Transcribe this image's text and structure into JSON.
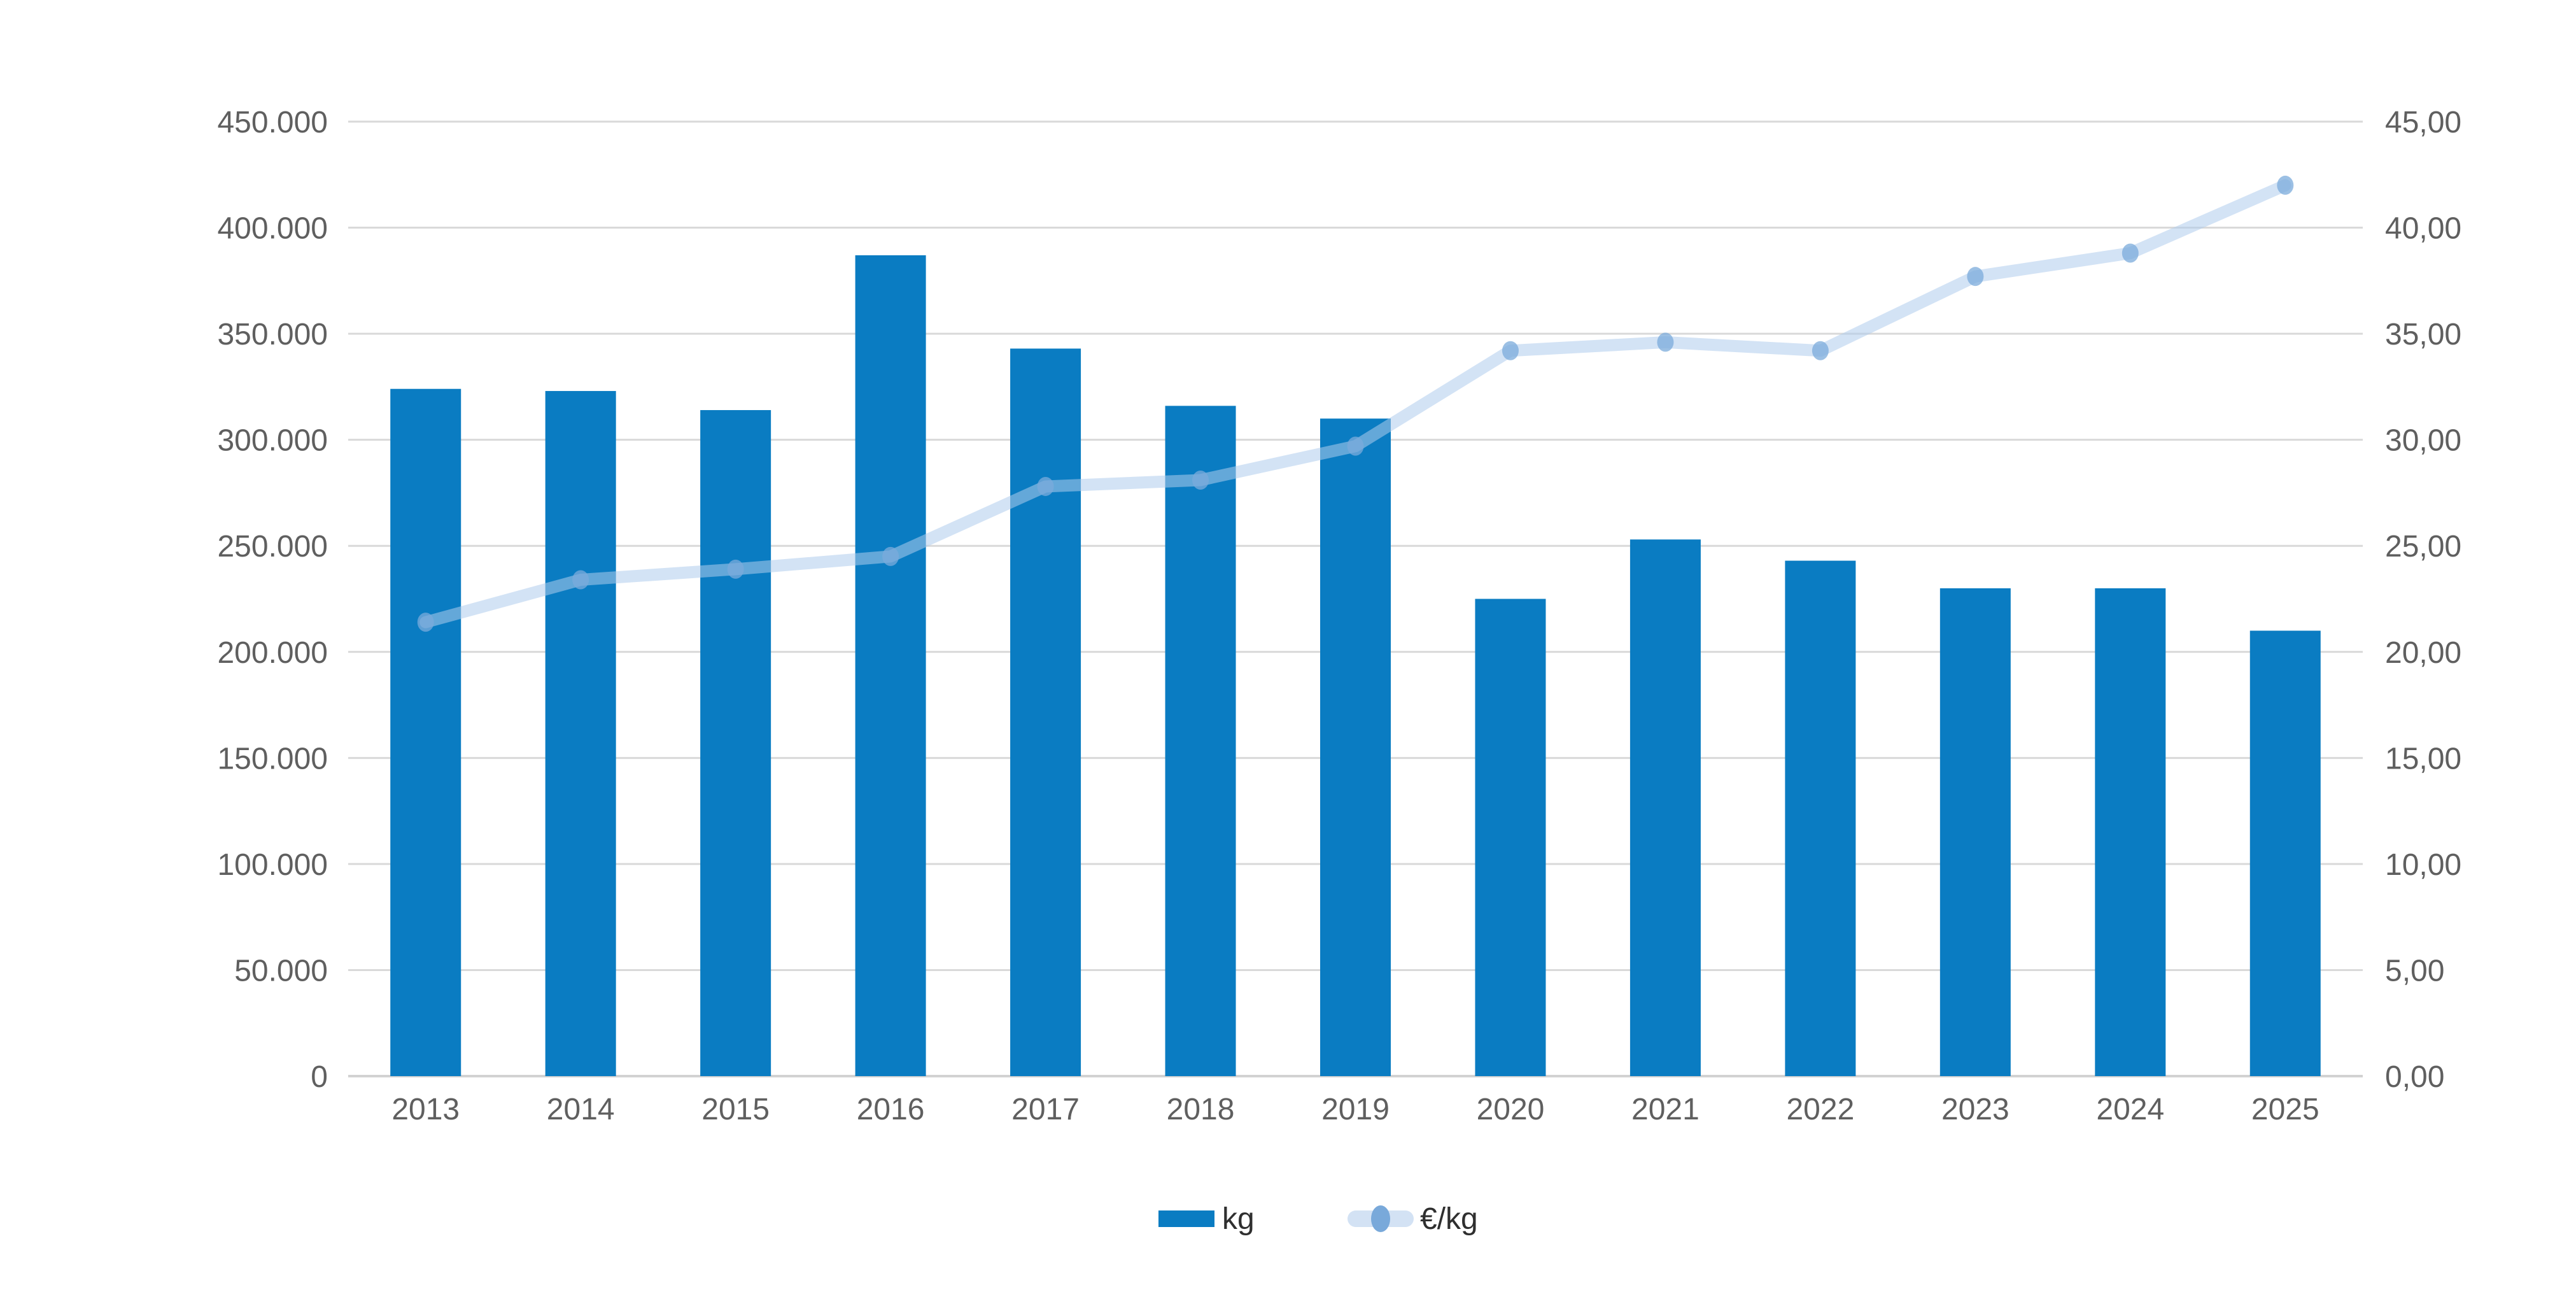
{
  "chart_data": {
    "type": "combo-bar-line",
    "title": "",
    "categories": [
      "2013",
      "2014",
      "2015",
      "2016",
      "2017",
      "2018",
      "2019",
      "2020",
      "2021",
      "2022",
      "2023",
      "2024",
      "2025"
    ],
    "series": [
      {
        "name": "kg",
        "type": "bar",
        "axis": "left",
        "values": [
          324000,
          323000,
          314000,
          387000,
          343000,
          316000,
          310000,
          225000,
          253000,
          243000,
          230000,
          230000,
          210000
        ]
      },
      {
        "name": "€/kg",
        "type": "line",
        "axis": "right",
        "values": [
          21.4,
          23.4,
          23.9,
          24.5,
          27.8,
          28.1,
          29.7,
          34.2,
          34.6,
          34.2,
          37.7,
          38.8,
          42.0
        ]
      }
    ],
    "left_axis": {
      "min": 0,
      "max": 450000,
      "step": 50000,
      "tick_labels": [
        "0",
        "50.000",
        "100.000",
        "150.000",
        "200.000",
        "250.000",
        "300.000",
        "350.000",
        "400.000",
        "450.000"
      ]
    },
    "right_axis": {
      "min": 0,
      "max": 45,
      "step": 5,
      "tick_labels": [
        "0,00",
        "5,00",
        "10,00",
        "15,00",
        "20,00",
        "25,00",
        "30,00",
        "35,00",
        "40,00",
        "45,00"
      ]
    },
    "grid": true,
    "legend": {
      "position": "bottom",
      "items": [
        "kg",
        "€/kg"
      ]
    }
  },
  "colors": {
    "bar": "#0a7cc2",
    "line": "#afccec",
    "line_solid_on_white": "#d3e2f4",
    "marker": "#7babdb",
    "legend_dot": "#79a9da",
    "gridline": "#d9d9d9",
    "axis_line": "#d2d2d2",
    "axis_text": "#5f5f5f",
    "legend_text": "#2f2f2f"
  }
}
